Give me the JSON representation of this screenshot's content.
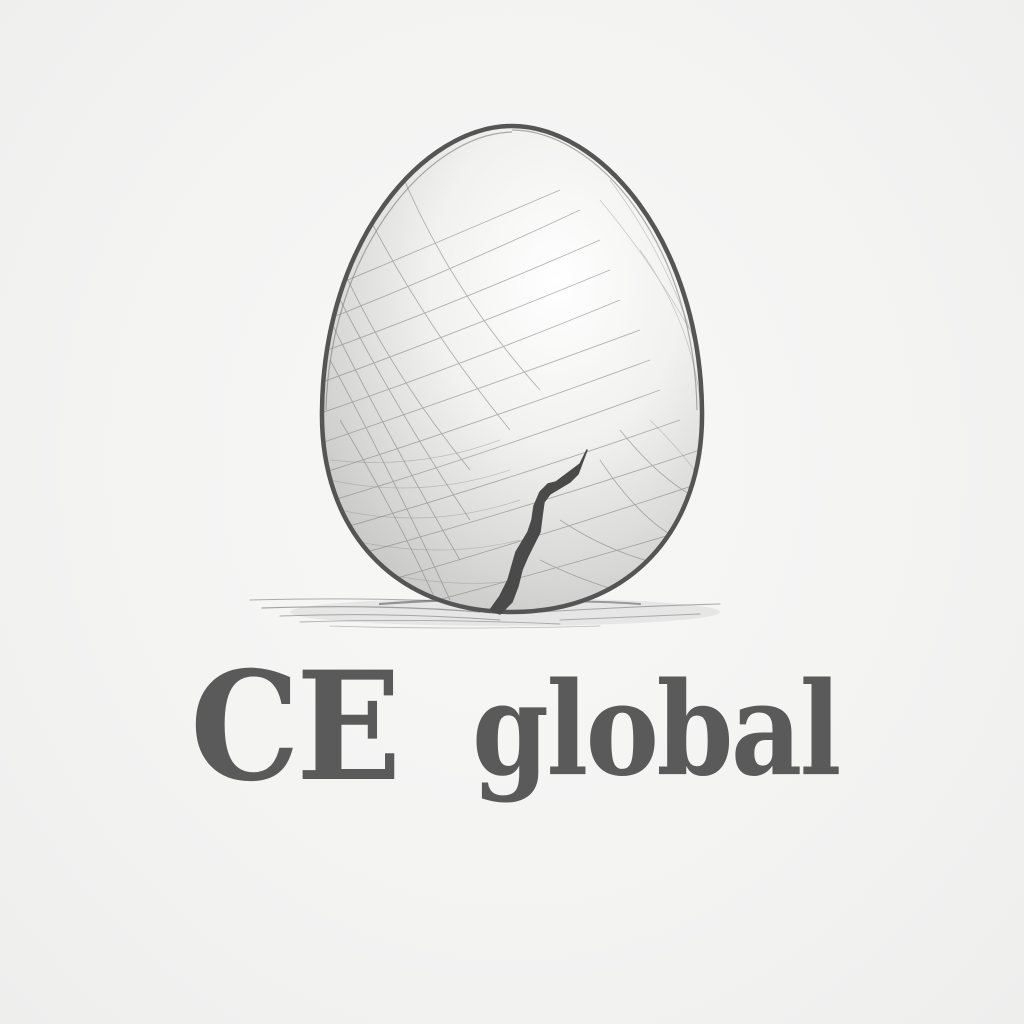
{
  "logo": {
    "illustration": "cracked-egg-pencil-sketch",
    "wordmark_primary": "CE",
    "wordmark_secondary": "global",
    "ink_color": "#5a5a5a",
    "background_color": "#f4f4f3"
  }
}
